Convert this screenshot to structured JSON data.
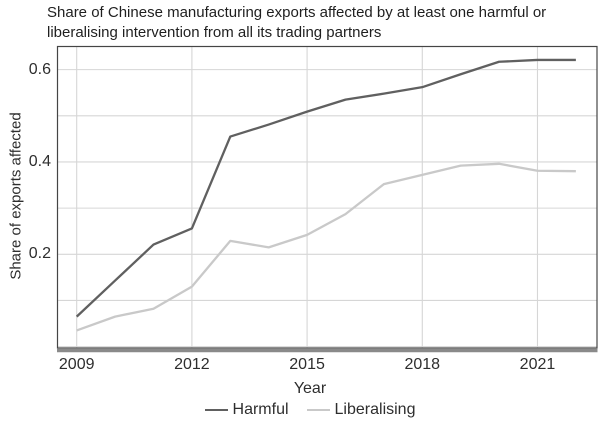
{
  "figure": {
    "title_lines": [
      "Share of Chinese manufacturing exports affected by at least one harmful or",
      "liberalising intervention from all its trading partners"
    ]
  },
  "chart_data": {
    "type": "line",
    "title": "Share of Chinese manufacturing exports affected by at least one harmful or liberalising intervention from all its trading partners",
    "xlabel": "Year",
    "ylabel": "Share of exports affected",
    "x": [
      2009,
      2010,
      2011,
      2012,
      2013,
      2014,
      2015,
      2016,
      2017,
      2018,
      2019,
      2020,
      2021,
      2022
    ],
    "series": [
      {
        "name": "Harmful",
        "color": "#606060",
        "values": [
          0.065,
          0.143,
          0.221,
          0.256,
          0.455,
          0.481,
          0.509,
          0.535,
          0.548,
          0.562,
          0.59,
          0.617,
          0.621,
          0.621
        ]
      },
      {
        "name": "Liberalising",
        "color": "#c9c9c9",
        "values": [
          0.035,
          0.065,
          0.082,
          0.13,
          0.229,
          0.215,
          0.242,
          0.287,
          0.352,
          0.372,
          0.392,
          0.396,
          0.381,
          0.38
        ]
      }
    ],
    "xticks": [
      2009,
      2012,
      2015,
      2018,
      2021
    ],
    "yticks": [
      0.2,
      0.4,
      0.6
    ],
    "ytick_labels": [
      "0.2",
      "0.4",
      "0.6"
    ],
    "grid_y": [
      0.0,
      0.1,
      0.2,
      0.3,
      0.4,
      0.5,
      0.6
    ],
    "xlim": [
      2008.5,
      2022.55
    ],
    "ylim": [
      -0.003,
      0.649
    ],
    "grid": true,
    "legend_position": "bottom",
    "colors": {
      "grid": "#d6d6d6",
      "panel_border": "#454545",
      "axis_line": "#8a8a8a",
      "text": "#2e2e2e"
    }
  }
}
